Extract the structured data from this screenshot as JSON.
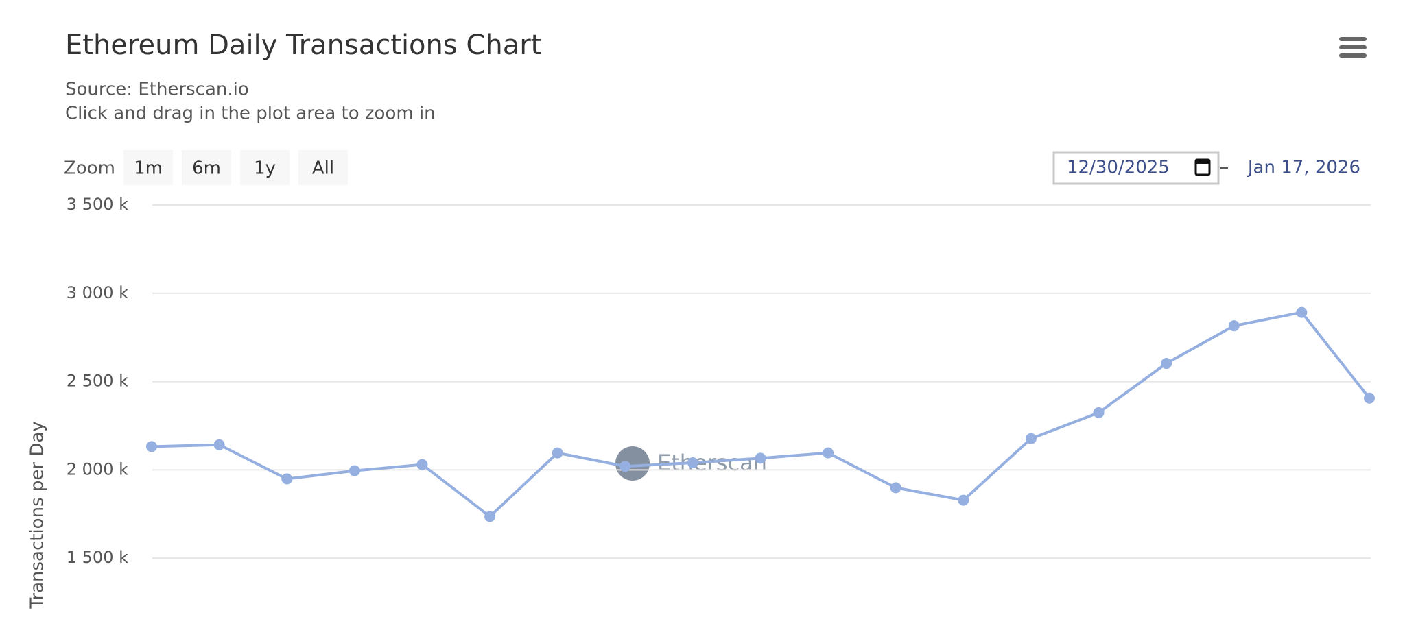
{
  "chart_data": {
    "type": "line",
    "title": "Ethereum Daily Transactions Chart",
    "subtitle": [
      "Source: Etherscan.io",
      "Click and drag in the plot area to zoom in"
    ],
    "range_selector": {
      "label": "Zoom",
      "buttons": [
        "1m",
        "6m",
        "1y",
        "All"
      ]
    },
    "range_from": "12/30/2025",
    "range_to": "Jan 17, 2026",
    "watermark": "Etherscan",
    "y_label": "Transactions per Day",
    "color": "#94afe0",
    "values": [
      2132,
      2142,
      1949,
      1995,
      2030,
      1736,
      2096,
      2020,
      2040,
      2066,
      2096,
      1899,
      1828,
      2177,
      2324,
      2603,
      2816,
      2892,
      2406
    ],
    "ylim": [
      1120,
      3500
    ],
    "yticks": [
      {
        "value": 1500,
        "label": "1 500 k"
      },
      {
        "value": 2000,
        "label": "2 000 k"
      },
      {
        "value": 2500,
        "label": "2 500 k"
      },
      {
        "value": 3000,
        "label": "3 000 k"
      },
      {
        "value": 3500,
        "label": "3 500 k"
      }
    ],
    "grid": true
  }
}
